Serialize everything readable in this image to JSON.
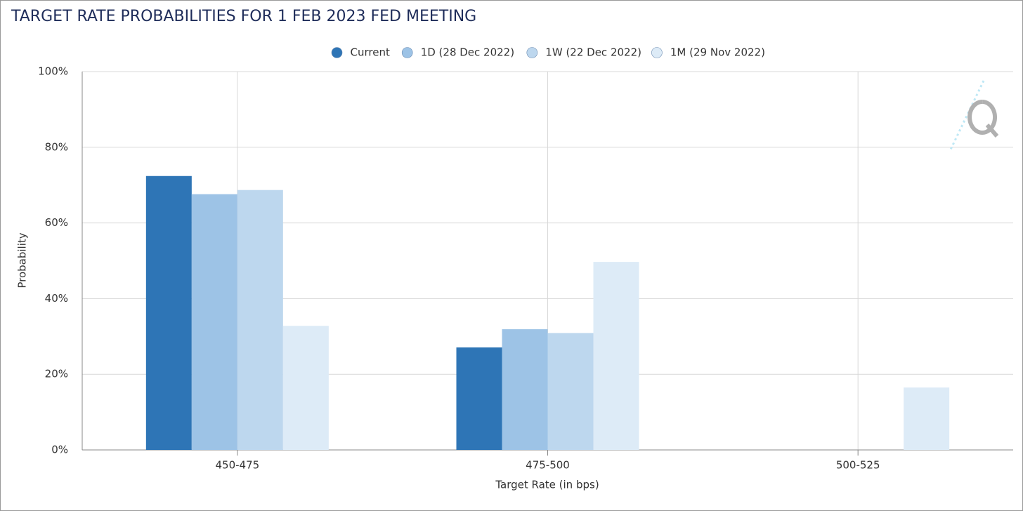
{
  "chart_data": {
    "type": "bar",
    "title": "TARGET RATE PROBABILITIES FOR 1 FEB 2023 FED MEETING",
    "x_label": "Target Rate (in bps)",
    "y_label": "Probability",
    "categories": [
      "450-475",
      "475-500",
      "500-525"
    ],
    "series": [
      {
        "name": "Current",
        "color": "#2e75b6",
        "values": [
          72.4,
          27.1,
          0
        ]
      },
      {
        "name": "1D (28 Dec 2022)",
        "color": "#9dc3e6",
        "values": [
          67.6,
          31.9,
          0
        ]
      },
      {
        "name": "1W (22 Dec 2022)",
        "color": "#bdd7ee",
        "values": [
          68.7,
          30.9,
          0
        ]
      },
      {
        "name": "1M (29 Nov 2022)",
        "color": "#ddebf7",
        "values": [
          32.8,
          49.7,
          16.5
        ]
      }
    ],
    "ylim": [
      0,
      100
    ],
    "yticks": [
      {
        "value": 0,
        "label": "0%"
      },
      {
        "value": 20,
        "label": "20%"
      },
      {
        "value": 40,
        "label": "40%"
      },
      {
        "value": 60,
        "label": "60%"
      },
      {
        "value": 80,
        "label": "80%"
      },
      {
        "value": 100,
        "label": "100%"
      }
    ],
    "grid": true,
    "legend": "top"
  }
}
